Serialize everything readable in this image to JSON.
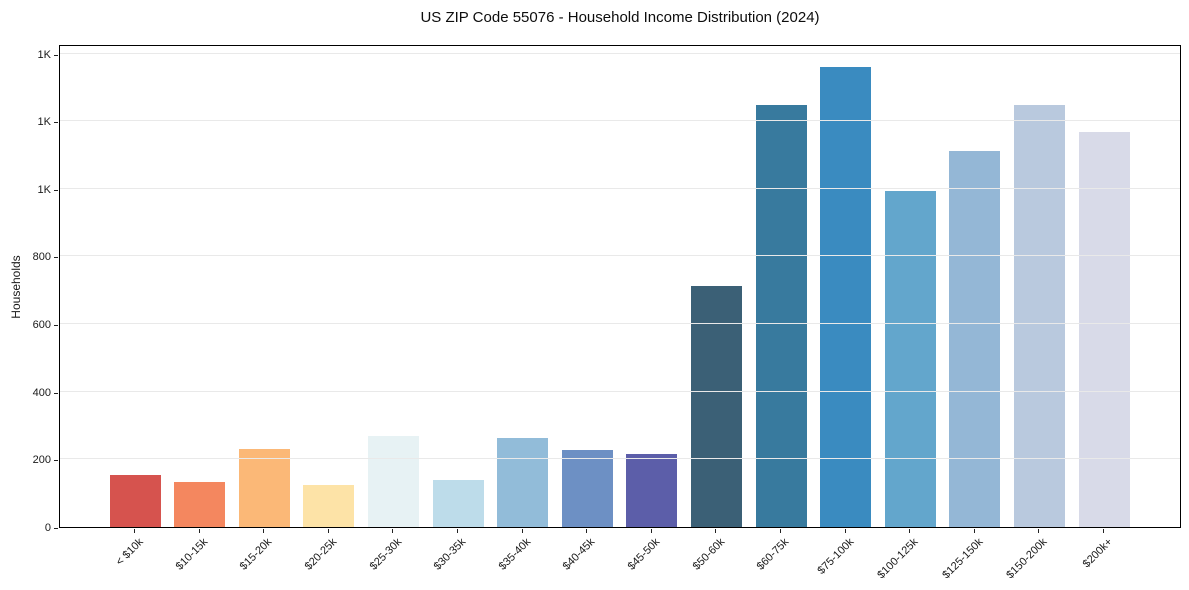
{
  "chart_data": {
    "type": "bar",
    "title": "US ZIP Code 55076 - Household Income Distribution (2024)",
    "xlabel": "",
    "ylabel": "Households",
    "categories": [
      "< $10k",
      "$10-15k",
      "$15-20k",
      "$20-25k",
      "$25-30k",
      "$30-35k",
      "$35-40k",
      "$40-45k",
      "$45-50k",
      "$50-60k",
      "$60-75k",
      "$75-100k",
      "$100-125k",
      "$125-150k",
      "$150-200k",
      "$200k+"
    ],
    "values": [
      155,
      132,
      231,
      124,
      268,
      140,
      263,
      228,
      217,
      712,
      1247,
      1360,
      994,
      1112,
      1247,
      1168
    ],
    "bar_colors": [
      "#d6534e",
      "#f4875f",
      "#fbb877",
      "#fde3a7",
      "#e7f2f4",
      "#bddcea",
      "#92bcd9",
      "#6d90c4",
      "#5c5ea9",
      "#3b6076",
      "#387a9e",
      "#3a8bc0",
      "#63a6cc",
      "#94b7d6",
      "#b9c9de",
      "#d8dae8"
    ],
    "ylim": [
      0,
      1428
    ],
    "yticks": [
      {
        "value": 0,
        "label": "0"
      },
      {
        "value": 200,
        "label": "200"
      },
      {
        "value": 400,
        "label": "400"
      },
      {
        "value": 600,
        "label": "600"
      },
      {
        "value": 800,
        "label": "800"
      },
      {
        "value": 1000,
        "label": "1K"
      },
      {
        "value": 1200,
        "label": "1K"
      },
      {
        "value": 1400,
        "label": "1K"
      }
    ],
    "grid": "horizontal-above-bars",
    "legend": "none",
    "background": "#ffffff",
    "grid_color": "#e9e9e9",
    "axis_color": "#000000",
    "x_tick_rotation_deg": 45
  }
}
